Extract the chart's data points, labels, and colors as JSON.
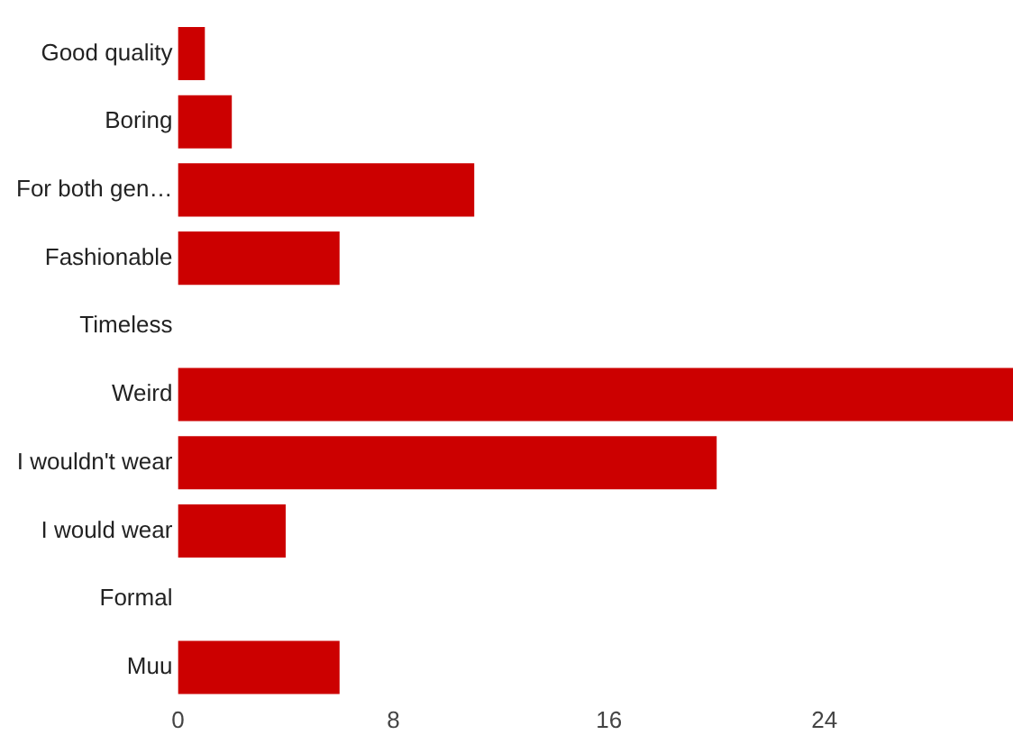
{
  "chart_data": {
    "type": "bar",
    "orientation": "horizontal",
    "categories": [
      "Good quality",
      "Boring",
      "For both gen…",
      "Fashionable",
      "Timeless",
      "Weird",
      "I wouldn't wear",
      "I would wear",
      "Formal",
      "Muu"
    ],
    "values": [
      1,
      2,
      11,
      6,
      0,
      31,
      20,
      4,
      0,
      6
    ],
    "color": "#cc0000",
    "xlim": [
      0,
      31
    ],
    "xticks": [
      0,
      8,
      16,
      24
    ],
    "grid": false,
    "legend": false
  }
}
